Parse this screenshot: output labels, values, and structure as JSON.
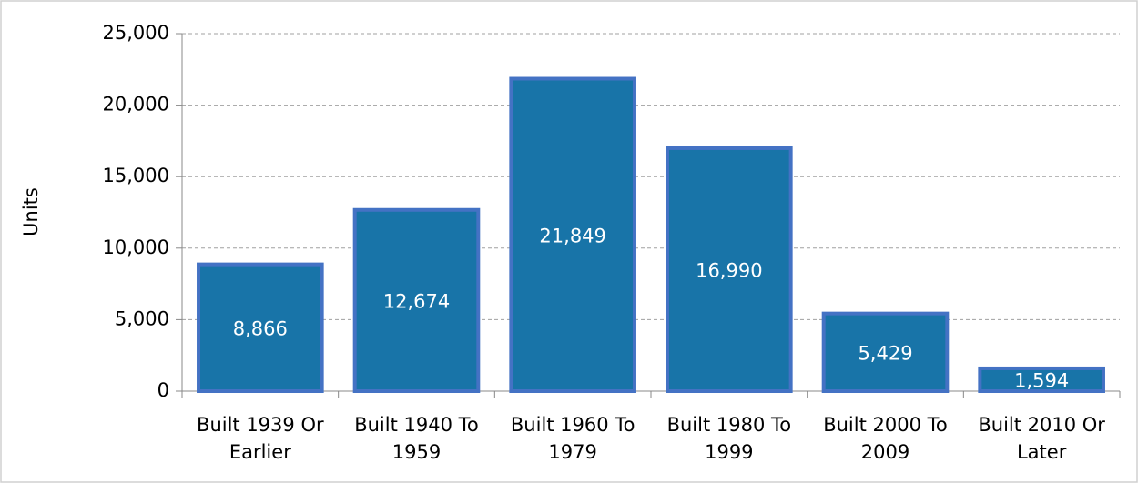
{
  "chart_data": {
    "type": "bar",
    "y_label": "Units",
    "categories": [
      "Built 1939 Or Earlier",
      "Built 1940 To 1959",
      "Built 1960 To 1979",
      "Built 1980 To 1999",
      "Built 2000 To 2009",
      "Built 2010 Or Later"
    ],
    "values": [
      8866,
      12674,
      21849,
      16990,
      5429,
      1594
    ],
    "value_labels": [
      "8,866",
      "12,674",
      "21,849",
      "16,990",
      "5,429",
      "1,594"
    ],
    "color": "#1874a8",
    "edge_color": "#4472c4",
    "ylim": [
      0,
      25000
    ],
    "yticks": [
      0,
      {
        "value": 5000,
        "label": "5,000"
      },
      {
        "value": 10000,
        "label": "10,000"
      },
      {
        "value": 15000,
        "label": "15,000"
      },
      {
        "value": 20000,
        "label": "20,000"
      },
      {
        "value": 25000,
        "label": "25,000"
      }
    ],
    "grid": true
  }
}
